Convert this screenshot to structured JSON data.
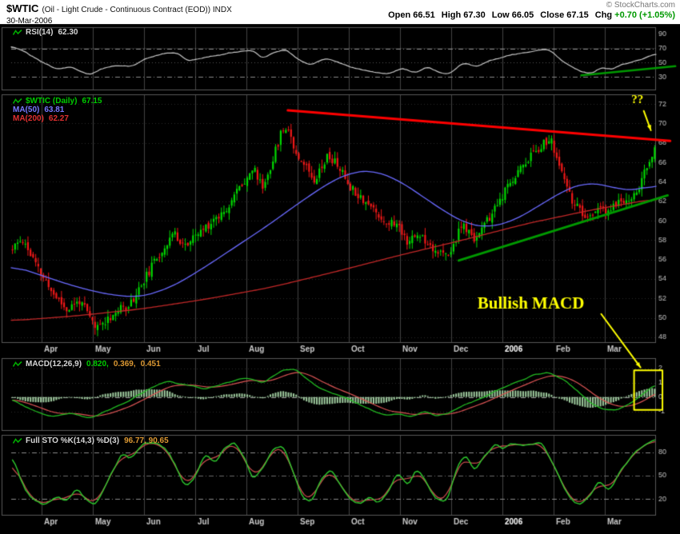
{
  "header": {
    "symbol": "$WTIC",
    "description": "(Oil - Light Crude - Continuous Contract (EOD)) INDX",
    "date": "30-Mar-2006",
    "copyright": "© StockCharts.com",
    "quote": {
      "open_label": "Open",
      "open": "66.51",
      "high_label": "High",
      "high": "67.30",
      "low_label": "Low",
      "low": "66.05",
      "close_label": "Close",
      "close": "67.15",
      "chg_label": "Chg",
      "chg": "+0.70 (+1.05%)"
    }
  },
  "panels": {
    "rsi": {
      "label": "RSI(14)",
      "value": "62.30"
    },
    "price": {
      "label": "$WTIC (Daily)",
      "value": "67.15",
      "ma50_label": "MA(50)",
      "ma50_value": "63.81",
      "ma200_label": "MA(200)",
      "ma200_value": "62.27"
    },
    "macd": {
      "label": "MACD(12,26,9)",
      "value_macd": "0.820,",
      "value_signal": "0.369,",
      "value_hist": "0.451"
    },
    "sto": {
      "label": "Full STO %K(14,3) %D(3)",
      "values": "96.77, 90.65"
    }
  },
  "chart_data": {
    "type": "candlestick",
    "symbol": "$WTIC",
    "x_months": [
      "Apr",
      "May",
      "Jun",
      "Jul",
      "Aug",
      "Sep",
      "Oct",
      "Nov",
      "Dec",
      "2006",
      "Feb",
      "Mar"
    ],
    "price": {
      "ylim": [
        47.5,
        73
      ],
      "ticks": [
        72,
        70,
        68,
        66,
        64,
        62,
        60,
        58,
        56,
        54,
        52,
        50,
        48
      ],
      "close_anchors": [
        [
          0,
          57.0
        ],
        [
          0.015,
          58.2
        ],
        [
          0.04,
          55.0
        ],
        [
          0.06,
          52.8
        ],
        [
          0.085,
          50.8
        ],
        [
          0.105,
          51.8
        ],
        [
          0.13,
          48.9
        ],
        [
          0.155,
          50.3
        ],
        [
          0.185,
          51.6
        ],
        [
          0.22,
          55.6
        ],
        [
          0.25,
          58.7
        ],
        [
          0.27,
          57.4
        ],
        [
          0.295,
          59.0
        ],
        [
          0.315,
          60.2
        ],
        [
          0.333,
          61.3
        ],
        [
          0.355,
          63.6
        ],
        [
          0.375,
          65.4
        ],
        [
          0.39,
          63.4
        ],
        [
          0.405,
          66.2
        ],
        [
          0.418,
          69.0
        ],
        [
          0.428,
          69.9
        ],
        [
          0.44,
          67.2
        ],
        [
          0.455,
          65.8
        ],
        [
          0.47,
          64.3
        ],
        [
          0.49,
          66.6
        ],
        [
          0.505,
          65.9
        ],
        [
          0.525,
          63.6
        ],
        [
          0.545,
          62.3
        ],
        [
          0.565,
          61.0
        ],
        [
          0.578,
          60.0
        ],
        [
          0.6,
          59.6
        ],
        [
          0.615,
          57.9
        ],
        [
          0.635,
          58.6
        ],
        [
          0.655,
          57.2
        ],
        [
          0.668,
          56.6
        ],
        [
          0.678,
          56.2
        ],
        [
          0.7,
          59.6
        ],
        [
          0.718,
          58.1
        ],
        [
          0.74,
          60.0
        ],
        [
          0.75,
          61.0
        ],
        [
          0.77,
          63.3
        ],
        [
          0.79,
          65.4
        ],
        [
          0.81,
          66.9
        ],
        [
          0.825,
          67.9
        ],
        [
          0.838,
          68.3
        ],
        [
          0.855,
          64.9
        ],
        [
          0.868,
          62.5
        ],
        [
          0.883,
          61.0
        ],
        [
          0.895,
          59.9
        ],
        [
          0.91,
          61.4
        ],
        [
          0.925,
          60.6
        ],
        [
          0.94,
          61.8
        ],
        [
          0.955,
          62.1
        ],
        [
          0.97,
          62.6
        ],
        [
          0.982,
          64.6
        ],
        [
          0.992,
          66.0
        ],
        [
          1,
          67.15
        ]
      ]
    },
    "ma50": {
      "anchors": [
        [
          0,
          55.4
        ],
        [
          0.05,
          54.3
        ],
        [
          0.1,
          53.2
        ],
        [
          0.15,
          52.4
        ],
        [
          0.2,
          52.1
        ],
        [
          0.25,
          53.2
        ],
        [
          0.3,
          55.2
        ],
        [
          0.35,
          57.4
        ],
        [
          0.4,
          59.6
        ],
        [
          0.45,
          62.0
        ],
        [
          0.5,
          64.2
        ],
        [
          0.53,
          65.0
        ],
        [
          0.56,
          65.2
        ],
        [
          0.6,
          64.2
        ],
        [
          0.64,
          62.4
        ],
        [
          0.68,
          60.6
        ],
        [
          0.71,
          59.6
        ],
        [
          0.74,
          59.3
        ],
        [
          0.78,
          60.0
        ],
        [
          0.82,
          61.6
        ],
        [
          0.86,
          63.2
        ],
        [
          0.89,
          63.9
        ],
        [
          0.92,
          63.7
        ],
        [
          0.95,
          63.1
        ],
        [
          0.975,
          63.2
        ],
        [
          1,
          63.81
        ]
      ]
    },
    "ma200": {
      "anchors": [
        [
          0,
          49.7
        ],
        [
          0.1,
          50.2
        ],
        [
          0.2,
          50.9
        ],
        [
          0.3,
          51.9
        ],
        [
          0.4,
          53.1
        ],
        [
          0.5,
          54.7
        ],
        [
          0.6,
          56.4
        ],
        [
          0.7,
          58.0
        ],
        [
          0.8,
          59.7
        ],
        [
          0.9,
          61.1
        ],
        [
          1,
          62.27
        ]
      ]
    },
    "rsi": {
      "ylim": [
        12,
        100
      ],
      "ticks": [
        90,
        70,
        50,
        30
      ],
      "overbought": 70,
      "oversold": 30,
      "anchors": [
        [
          0,
          74
        ],
        [
          0.02,
          66
        ],
        [
          0.045,
          52
        ],
        [
          0.07,
          41
        ],
        [
          0.095,
          43
        ],
        [
          0.12,
          32
        ],
        [
          0.14,
          41
        ],
        [
          0.165,
          47
        ],
        [
          0.185,
          44
        ],
        [
          0.21,
          56
        ],
        [
          0.235,
          63
        ],
        [
          0.255,
          64
        ],
        [
          0.275,
          52
        ],
        [
          0.295,
          56
        ],
        [
          0.315,
          60
        ],
        [
          0.335,
          63
        ],
        [
          0.355,
          66
        ],
        [
          0.375,
          68
        ],
        [
          0.39,
          55
        ],
        [
          0.405,
          64
        ],
        [
          0.425,
          69
        ],
        [
          0.445,
          54
        ],
        [
          0.465,
          46
        ],
        [
          0.485,
          56
        ],
        [
          0.505,
          52
        ],
        [
          0.525,
          44
        ],
        [
          0.545,
          40
        ],
        [
          0.565,
          36
        ],
        [
          0.585,
          34
        ],
        [
          0.605,
          42
        ],
        [
          0.625,
          36
        ],
        [
          0.645,
          44
        ],
        [
          0.665,
          35
        ],
        [
          0.68,
          34
        ],
        [
          0.7,
          50
        ],
        [
          0.72,
          44
        ],
        [
          0.745,
          54
        ],
        [
          0.77,
          60
        ],
        [
          0.795,
          64
        ],
        [
          0.815,
          67
        ],
        [
          0.835,
          69
        ],
        [
          0.855,
          52
        ],
        [
          0.87,
          44
        ],
        [
          0.885,
          37
        ],
        [
          0.9,
          34
        ],
        [
          0.915,
          44
        ],
        [
          0.93,
          39
        ],
        [
          0.945,
          47
        ],
        [
          0.96,
          50
        ],
        [
          0.975,
          54
        ],
        [
          0.99,
          59
        ],
        [
          1,
          62.3
        ]
      ]
    },
    "macd": {
      "ylim": [
        -2.3,
        2.7
      ],
      "ticks": [
        2,
        1,
        0,
        -1
      ],
      "anchors": [
        [
          0,
          -0.2
        ],
        [
          0.03,
          -0.9
        ],
        [
          0.06,
          -1.4
        ],
        [
          0.09,
          -1.1
        ],
        [
          0.12,
          -1.5
        ],
        [
          0.15,
          -0.9
        ],
        [
          0.18,
          -0.3
        ],
        [
          0.21,
          0.5
        ],
        [
          0.24,
          1.1
        ],
        [
          0.27,
          0.85
        ],
        [
          0.3,
          0.55
        ],
        [
          0.33,
          0.95
        ],
        [
          0.36,
          1.35
        ],
        [
          0.39,
          1.0
        ],
        [
          0.42,
          1.85
        ],
        [
          0.44,
          1.95
        ],
        [
          0.46,
          1.2
        ],
        [
          0.48,
          0.6
        ],
        [
          0.5,
          0.25
        ],
        [
          0.52,
          -0.05
        ],
        [
          0.54,
          -0.5
        ],
        [
          0.56,
          -0.95
        ],
        [
          0.58,
          -1.3
        ],
        [
          0.6,
          -1.15
        ],
        [
          0.62,
          -1.4
        ],
        [
          0.64,
          -1.0
        ],
        [
          0.66,
          -1.3
        ],
        [
          0.68,
          -1.15
        ],
        [
          0.7,
          -0.6
        ],
        [
          0.72,
          -0.3
        ],
        [
          0.75,
          0.35
        ],
        [
          0.78,
          0.95
        ],
        [
          0.81,
          1.5
        ],
        [
          0.835,
          1.7
        ],
        [
          0.86,
          1.15
        ],
        [
          0.88,
          0.4
        ],
        [
          0.9,
          -0.4
        ],
        [
          0.92,
          -0.85
        ],
        [
          0.94,
          -0.9
        ],
        [
          0.96,
          -0.5
        ],
        [
          0.98,
          0.15
        ],
        [
          1,
          0.82
        ]
      ]
    },
    "sto": {
      "ylim": [
        0,
        102
      ],
      "ticks": [
        80,
        50,
        20
      ],
      "k_anchors": [
        [
          0,
          75
        ],
        [
          0.015,
          40
        ],
        [
          0.03,
          20
        ],
        [
          0.05,
          10
        ],
        [
          0.07,
          25
        ],
        [
          0.085,
          15
        ],
        [
          0.1,
          35
        ],
        [
          0.115,
          20
        ],
        [
          0.13,
          12
        ],
        [
          0.15,
          45
        ],
        [
          0.17,
          80
        ],
        [
          0.185,
          70
        ],
        [
          0.2,
          88
        ],
        [
          0.22,
          92
        ],
        [
          0.24,
          85
        ],
        [
          0.255,
          60
        ],
        [
          0.27,
          35
        ],
        [
          0.285,
          50
        ],
        [
          0.3,
          80
        ],
        [
          0.315,
          65
        ],
        [
          0.33,
          85
        ],
        [
          0.345,
          92
        ],
        [
          0.36,
          75
        ],
        [
          0.375,
          45
        ],
        [
          0.39,
          60
        ],
        [
          0.405,
          85
        ],
        [
          0.42,
          90
        ],
        [
          0.435,
          60
        ],
        [
          0.45,
          25
        ],
        [
          0.465,
          15
        ],
        [
          0.48,
          45
        ],
        [
          0.495,
          60
        ],
        [
          0.51,
          40
        ],
        [
          0.525,
          20
        ],
        [
          0.54,
          12
        ],
        [
          0.555,
          25
        ],
        [
          0.57,
          15
        ],
        [
          0.585,
          30
        ],
        [
          0.6,
          55
        ],
        [
          0.615,
          35
        ],
        [
          0.63,
          60
        ],
        [
          0.645,
          40
        ],
        [
          0.66,
          20
        ],
        [
          0.675,
          15
        ],
        [
          0.69,
          55
        ],
        [
          0.705,
          80
        ],
        [
          0.72,
          55
        ],
        [
          0.735,
          75
        ],
        [
          0.75,
          90
        ],
        [
          0.765,
          85
        ],
        [
          0.78,
          92
        ],
        [
          0.795,
          88
        ],
        [
          0.81,
          93
        ],
        [
          0.825,
          90
        ],
        [
          0.84,
          70
        ],
        [
          0.855,
          40
        ],
        [
          0.87,
          20
        ],
        [
          0.885,
          12
        ],
        [
          0.9,
          25
        ],
        [
          0.915,
          45
        ],
        [
          0.93,
          30
        ],
        [
          0.945,
          55
        ],
        [
          0.96,
          70
        ],
        [
          0.975,
          85
        ],
        [
          0.99,
          93
        ],
        [
          1,
          96.8
        ]
      ]
    },
    "trendlines": [
      {
        "panel": "price",
        "color": "#ff0000",
        "width": 3,
        "from": [
          0.429,
          71.35
        ],
        "to": [
          1.022,
          68.2
        ]
      },
      {
        "panel": "price",
        "color": "#009900",
        "width": 3,
        "from": [
          0.694,
          55.9
        ],
        "to": [
          1.018,
          62.6
        ]
      },
      {
        "panel": "rsi",
        "color": "#009900",
        "width": 2.5,
        "from": [
          0.884,
          32
        ],
        "to": [
          1.03,
          45
        ]
      }
    ],
    "annotations": {
      "question_marks": {
        "text": "??",
        "t": 0.971,
        "v": 72.4
      },
      "question_arrow": {
        "from": [
          0.981,
          71.3
        ],
        "to": [
          0.992,
          69.3
        ]
      },
      "bullish_text": {
        "text": "Bullish MACD",
        "t": 0.806,
        "v": 51.4
      },
      "bullish_line": {
        "from": [
          0.915,
          50.4
        ],
        "to": [
          0.976,
          2.05
        ]
      },
      "macd_highlight_rect": {
        "t0": 0.966,
        "t1": 1.01,
        "v0": 1.85,
        "v1": -0.9
      }
    },
    "colors": {
      "up": "#00d800",
      "down": "#f01818",
      "ma50": "#6a6aff",
      "ma200": "#c22828",
      "rsi_line": "#c8c8c8",
      "macd_line": "#22bb22",
      "macd_signal": "#dd5555",
      "macd_hist": "#9fcc9f",
      "sto_k": "#2ecc2e",
      "sto_d": "#d05050",
      "trend_red": "#ff0000",
      "trend_green": "#009900",
      "annotation": "#ffff00"
    }
  }
}
